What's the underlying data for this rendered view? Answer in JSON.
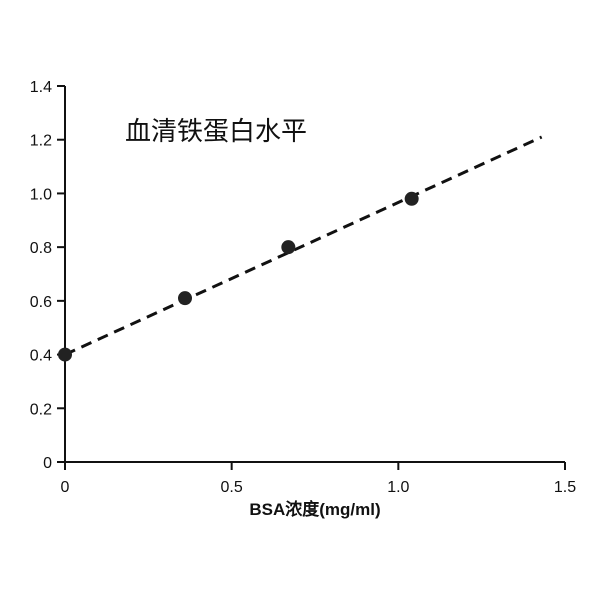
{
  "chart_data": {
    "type": "scatter",
    "title": "",
    "annotation": "血清铁蛋白水平",
    "xlabel": "BSA浓度(mg/ml)",
    "ylabel": "",
    "xlim": [
      0,
      1.5
    ],
    "ylim": [
      0,
      1.4
    ],
    "x_ticks": [
      0,
      0.5,
      1.0,
      1.5
    ],
    "x_tick_labels": [
      "0",
      "0.5",
      "1.0",
      "1.5"
    ],
    "y_ticks": [
      0,
      0.2,
      0.4,
      0.6,
      0.8,
      1.0,
      1.2,
      1.4
    ],
    "y_tick_labels": [
      "0",
      "0.2",
      "0.4",
      "0.6",
      "0.8",
      "1.0",
      "1.2",
      "1.4"
    ],
    "grid": false,
    "series": [
      {
        "values": [
          {
            "x": 0,
            "y": 0.4
          },
          {
            "x": 0.36,
            "y": 0.61
          },
          {
            "x": 0.67,
            "y": 0.8
          },
          {
            "x": 1.04,
            "y": 0.98
          }
        ]
      }
    ],
    "fit_line": {
      "style": "dashed",
      "points": [
        {
          "x": 0,
          "y": 0.4
        },
        {
          "x": 1.43,
          "y": 1.21
        }
      ]
    },
    "colors": {
      "points": "#222222",
      "line": "#111111",
      "axis": "#111111"
    }
  }
}
